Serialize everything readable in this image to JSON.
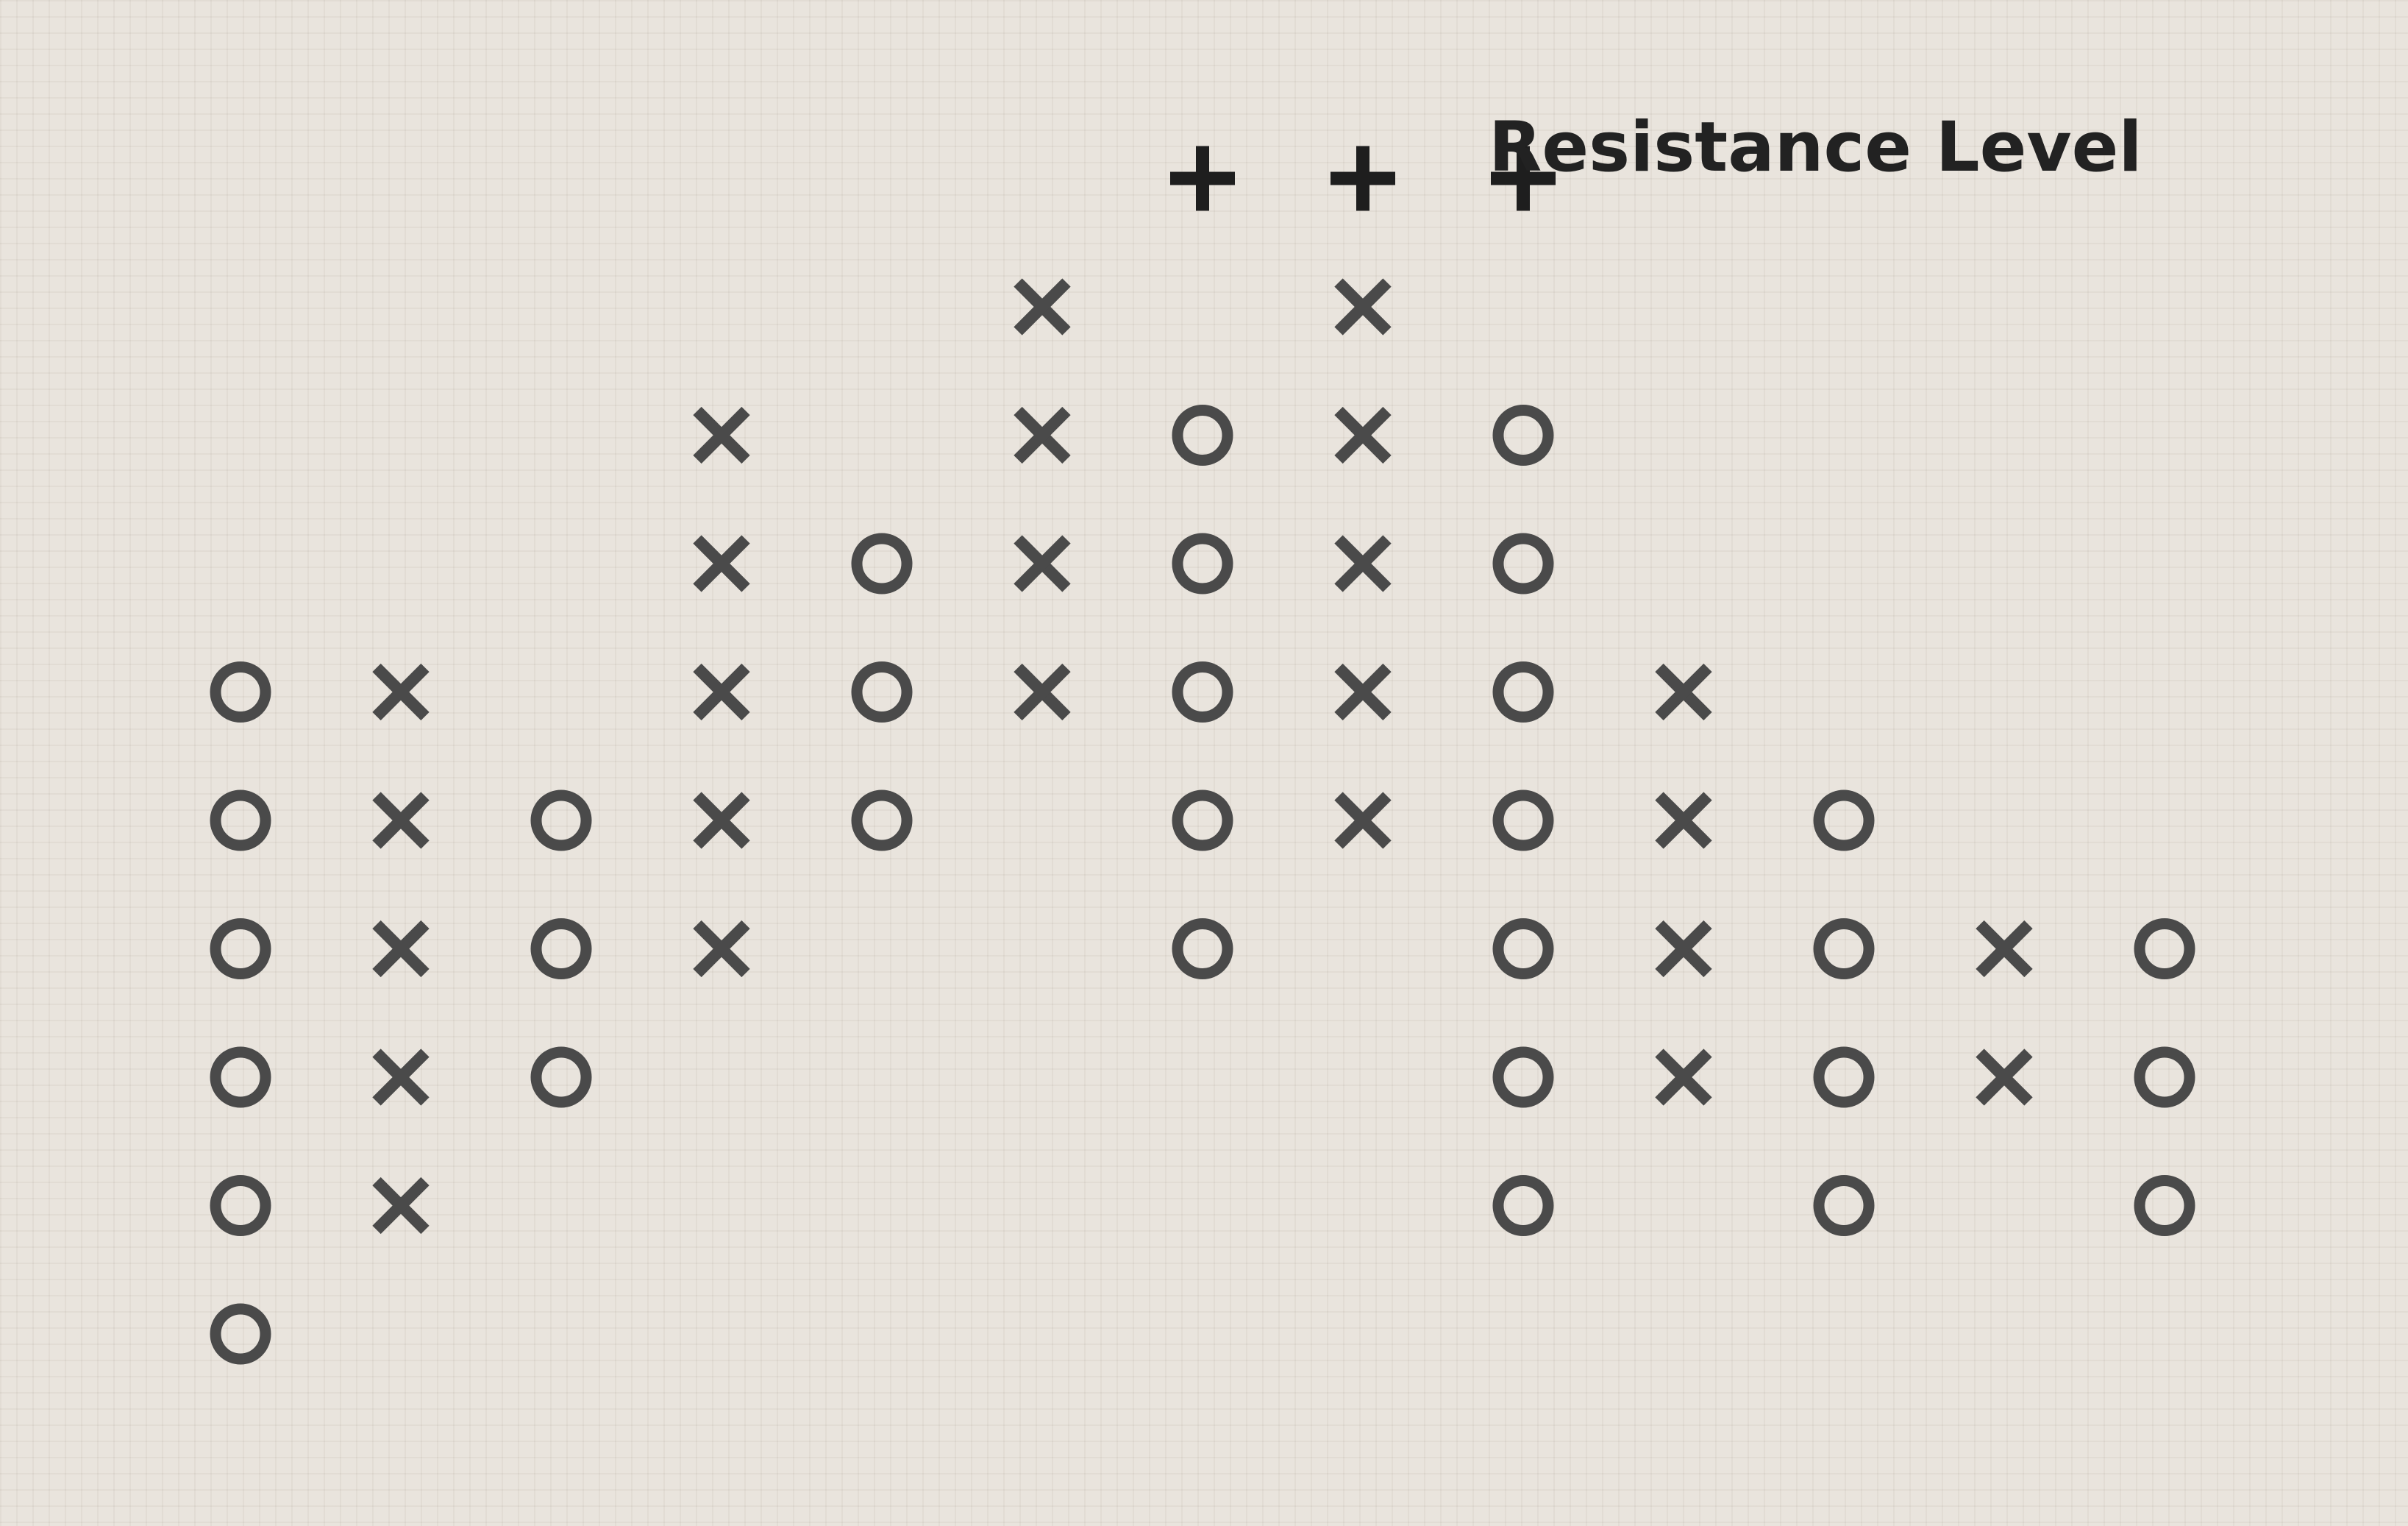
{
  "chart_data": {
    "type": "point-and-figure",
    "grid": true,
    "columns": [
      {
        "symbol": "O",
        "from": 1,
        "to": 6
      },
      {
        "symbol": "X",
        "from": 2,
        "to": 6
      },
      {
        "symbol": "O",
        "from": 3,
        "to": 5
      },
      {
        "symbol": "X",
        "from": 4,
        "to": 8
      },
      {
        "symbol": "O",
        "from": 5,
        "to": 7
      },
      {
        "symbol": "X",
        "from": 6,
        "to": 9
      },
      {
        "symbol": "O",
        "from": 4,
        "to": 8
      },
      {
        "symbol": "X",
        "from": 5,
        "to": 9
      },
      {
        "symbol": "O",
        "from": 2,
        "to": 8
      },
      {
        "symbol": "X",
        "from": 3,
        "to": 6
      },
      {
        "symbol": "O",
        "from": 2,
        "to": 5
      },
      {
        "symbol": "X",
        "from": 3,
        "to": 4
      },
      {
        "symbol": "O",
        "from": 2,
        "to": 4
      }
    ],
    "resistance": {
      "level": 10,
      "columns": [
        6,
        7,
        8
      ],
      "marker": "+",
      "label": "Resistance Level"
    }
  },
  "colors": {
    "symbol": "#4a4a4a",
    "resistance_marker": "#1e1e1e",
    "label": "#222222",
    "background": "#e9e4dd"
  }
}
